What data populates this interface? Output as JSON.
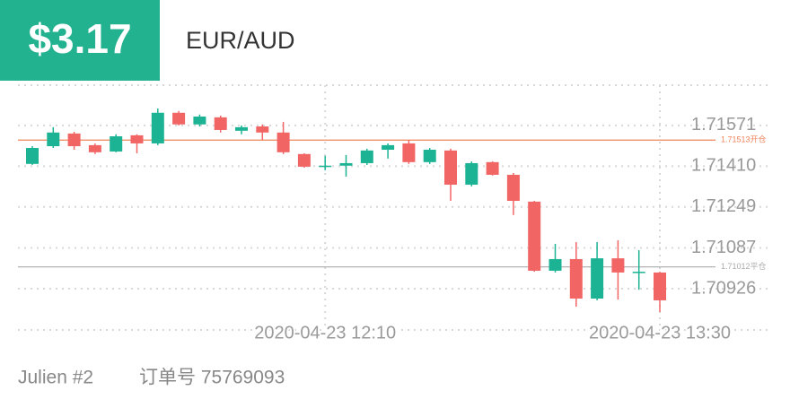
{
  "header": {
    "profit": "$3.17",
    "symbol": "EUR/AUD"
  },
  "chart_data": {
    "type": "candlestick",
    "categories": [
      null,
      null,
      null,
      null,
      null,
      null,
      null,
      null,
      null,
      null,
      null,
      null,
      null,
      null,
      "2020-04-23 12:10",
      null,
      null,
      null,
      null,
      null,
      null,
      null,
      null,
      null,
      null,
      null,
      null,
      null,
      null,
      null,
      "2020-04-23 13:30"
    ],
    "series": [
      {
        "up_color": "#1bb394",
        "down_color": "#f26565",
        "open": [
          1.71419,
          1.71489,
          1.71539,
          1.71493,
          1.71468,
          1.71532,
          1.715,
          1.71621,
          1.71575,
          1.71603,
          1.7155,
          1.71567,
          1.71543,
          1.71458,
          1.71408,
          1.71412,
          1.71422,
          1.71475,
          1.715,
          1.71426,
          1.71472,
          1.71337,
          1.71426,
          1.71376,
          1.7127,
          1.70997,
          1.71043,
          1.70887,
          1.71046,
          1.7099,
          1.7099
        ],
        "high": [
          1.71489,
          1.71564,
          1.71546,
          1.715,
          1.71536,
          1.71536,
          1.71638,
          1.71628,
          1.71614,
          1.7161,
          1.71571,
          1.71575,
          1.71585,
          1.71461,
          1.71451,
          1.71454,
          1.71479,
          1.715,
          1.71514,
          1.71482,
          1.71479,
          1.71429,
          1.71429,
          1.71383,
          1.71273,
          1.71103,
          1.7111,
          1.7111,
          1.71117,
          1.71078,
          1.70993
        ],
        "low": [
          1.71415,
          1.71482,
          1.71475,
          1.71458,
          1.71465,
          1.71461,
          1.71493,
          1.71571,
          1.71567,
          1.71543,
          1.71536,
          1.71514,
          1.71458,
          1.71404,
          1.71394,
          1.71369,
          1.71415,
          1.7144,
          1.71419,
          1.71419,
          1.71273,
          1.7133,
          1.71373,
          1.71217,
          1.70993,
          1.7099,
          1.70855,
          1.7088,
          1.70883,
          1.70922,
          1.70834
        ],
        "close": [
          1.71482,
          1.71543,
          1.71489,
          1.71465,
          1.71528,
          1.715,
          1.71621,
          1.71575,
          1.71606,
          1.71553,
          1.71564,
          1.71543,
          1.71465,
          1.71408,
          1.71412,
          1.71422,
          1.71472,
          1.71493,
          1.71426,
          1.71475,
          1.71337,
          1.71422,
          1.71376,
          1.71273,
          1.70997,
          1.71043,
          1.70887,
          1.71046,
          1.7099,
          1.70993,
          1.7088
        ]
      }
    ],
    "ylim": [
      1.70763,
      1.7173
    ],
    "yticks": [
      1.70926,
      1.71087,
      1.71249,
      {
        "value": 1.7141,
        "label": "1.71410"
      },
      1.71571
    ],
    "grid": true,
    "reference_lines": [
      {
        "value": 1.71513,
        "label": "1.71513开仓",
        "color": "#f0845a"
      },
      {
        "value": 1.71012,
        "label": "1.71012平仓",
        "color": "#aaaaaa"
      }
    ]
  },
  "footer": {
    "trader": "Julien #2",
    "order": "订单号 75769093"
  }
}
